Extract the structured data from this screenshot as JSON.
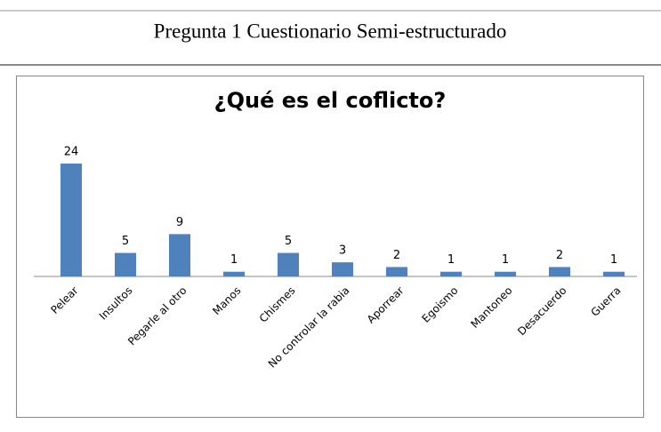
{
  "heading": "Pregunta 1 Cuestionario Semi-estructurado",
  "chart_data": {
    "type": "bar",
    "title": "¿Qué es el coflicto?",
    "categories": [
      "Pelear",
      "Insultos",
      "Pegarle al otro",
      "Manos",
      "Chismes",
      "No controlar la rabia",
      "Aporrear",
      "Egoismo",
      "Mantoneo",
      "Desacuerdo",
      "Guerra"
    ],
    "values": [
      24,
      5,
      9,
      1,
      5,
      3,
      2,
      1,
      1,
      2,
      1
    ],
    "color": "#4f81bd"
  }
}
